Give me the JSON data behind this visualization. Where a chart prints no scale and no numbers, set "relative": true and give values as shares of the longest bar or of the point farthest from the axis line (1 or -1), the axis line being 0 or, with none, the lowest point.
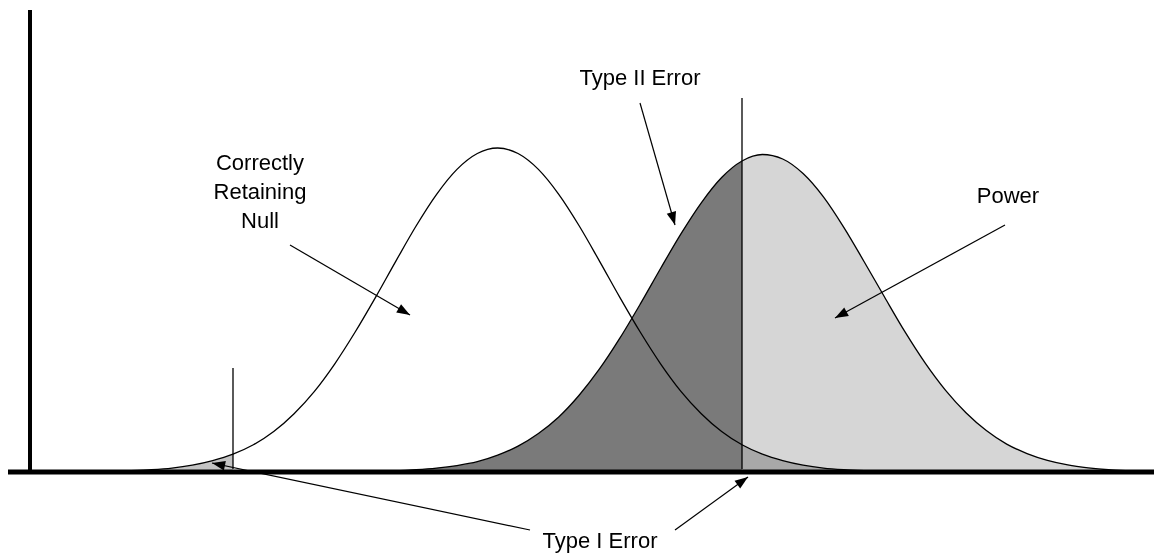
{
  "chart_data": {
    "type": "line",
    "relative": true,
    "categories": [
      null,
      null,
      null,
      null,
      null,
      null,
      null,
      null,
      null,
      null,
      null,
      null,
      null,
      null,
      null,
      null,
      null,
      null,
      null,
      null,
      null,
      null,
      null,
      null,
      null,
      null,
      null,
      null,
      null,
      null,
      null,
      null,
      null,
      null,
      null,
      null,
      null,
      null,
      null,
      null,
      null,
      null,
      null,
      null,
      null,
      null,
      null,
      null,
      null,
      null,
      null,
      null,
      null,
      null,
      null,
      null
    ],
    "series": [
      {
        "type": "area",
        "color": "#c4c4c4",
        "values": [
          0,
          0,
          0,
          0,
          0.002,
          0.004,
          0.007,
          0.012,
          0.021,
          0.035,
          0.055,
          null,
          null,
          null,
          null,
          null,
          null,
          null,
          null,
          null,
          null,
          null,
          null,
          null,
          null,
          null,
          null,
          null,
          null,
          null,
          null,
          null,
          null,
          null,
          null,
          null,
          null,
          null,
          null,
          null,
          null,
          null,
          null,
          null,
          null,
          null,
          null,
          null,
          null,
          null,
          null,
          null,
          null,
          null,
          null,
          null
        ]
      },
      {
        "type": "area",
        "color": "#7a7a7a",
        "values": [
          null,
          null,
          null,
          null,
          null,
          null,
          null,
          null,
          null,
          null,
          null,
          null,
          null,
          null,
          null,
          null,
          null,
          null,
          0.004,
          0.007,
          0.012,
          0.02,
          0.032,
          0.052,
          0.08,
          0.119,
          0.17,
          0.237,
          0.318,
          0.413,
          0.518,
          0.628,
          0.735,
          0.831,
          0.909,
          0.96,
          null,
          null,
          null,
          null,
          null,
          null,
          null,
          null,
          null,
          null,
          null,
          null,
          null,
          null,
          null,
          null,
          null,
          null,
          null,
          null
        ]
      },
      {
        "type": "area",
        "color": "#d6d6d6",
        "values": [
          null,
          null,
          null,
          null,
          null,
          null,
          null,
          null,
          null,
          null,
          null,
          null,
          null,
          null,
          null,
          null,
          null,
          null,
          null,
          null,
          null,
          null,
          null,
          null,
          null,
          null,
          null,
          null,
          null,
          null,
          null,
          null,
          null,
          null,
          null,
          0.96,
          0.98,
          0.966,
          0.921,
          0.849,
          0.755,
          0.649,
          0.54,
          0.433,
          0.336,
          0.252,
          0.183,
          0.128,
          0.086,
          0.057,
          0.036,
          0.022,
          0.013,
          0.007,
          0.004,
          0.002
        ]
      },
      {
        "type": "area",
        "color": "#a8a8a8",
        "values": [
          null,
          null,
          null,
          null,
          null,
          null,
          null,
          null,
          null,
          null,
          null,
          null,
          null,
          null,
          null,
          null,
          null,
          null,
          null,
          null,
          null,
          null,
          null,
          null,
          null,
          null,
          null,
          null,
          null,
          null,
          null,
          null,
          null,
          null,
          null,
          0.084,
          0.055,
          0.035,
          0.021,
          0.012,
          0.007,
          0.004,
          0.002,
          0,
          null,
          null,
          null,
          null,
          null,
          null,
          null,
          null,
          null,
          null,
          null,
          null
        ]
      },
      {
        "color": "#000000",
        "values": [
          null,
          null,
          null,
          0,
          0.002,
          0.004,
          0.007,
          0.012,
          0.021,
          0.035,
          0.055,
          0.084,
          0.125,
          0.18,
          0.249,
          0.334,
          0.432,
          0.539,
          0.651,
          0.76,
          0.857,
          0.934,
          0.983,
          1,
          0.983,
          0.934,
          0.857,
          0.76,
          0.651,
          0.539,
          0.432,
          0.334,
          0.249,
          0.18,
          0.125,
          0.084,
          0.055,
          0.035,
          0.021,
          0.012,
          0.007,
          0.004,
          0.002,
          0,
          null,
          null,
          null,
          null,
          null,
          null,
          null,
          null,
          null,
          null,
          null,
          null
        ]
      },
      {
        "color": "#000000",
        "values": [
          null,
          null,
          null,
          null,
          null,
          null,
          null,
          null,
          null,
          null,
          null,
          null,
          null,
          null,
          null,
          null,
          null,
          0,
          0.004,
          0.007,
          0.012,
          0.02,
          0.032,
          0.052,
          0.08,
          0.119,
          0.17,
          0.237,
          0.318,
          0.413,
          0.518,
          0.628,
          0.735,
          0.831,
          0.909,
          0.96,
          0.98,
          0.966,
          0.921,
          0.849,
          0.755,
          0.649,
          0.54,
          0.433,
          0.336,
          0.252,
          0.183,
          0.128,
          0.086,
          0.057,
          0.036,
          0.022,
          0.013,
          0.007,
          0.004,
          0.002
        ]
      }
    ],
    "annotations": [
      "Correctly Retaining Null",
      "Type II Error",
      "Power",
      "Type I Error"
    ]
  }
}
